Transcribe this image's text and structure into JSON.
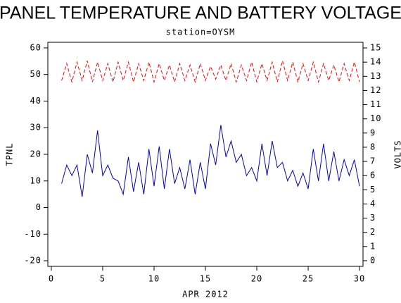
{
  "chart_data": {
    "type": "line",
    "title": "PANEL TEMPERATURE AND BATTERY VOLTAGE",
    "subtitle": "station=OYSM",
    "xlabel": "APR 2012",
    "ylabel": "TPNL",
    "y2label": "VOLTS",
    "x": [
      1,
      1.5,
      2,
      2.5,
      3,
      3.5,
      4,
      4.5,
      5,
      5.5,
      6,
      6.5,
      7,
      7.5,
      8,
      8.5,
      9,
      9.5,
      10,
      10.5,
      11,
      11.5,
      12,
      12.5,
      13,
      13.5,
      14,
      14.5,
      15,
      15.5,
      16,
      16.5,
      17,
      17.5,
      18,
      18.5,
      19,
      19.5,
      20,
      20.5,
      21,
      21.5,
      22,
      22.5,
      23,
      23.5,
      24,
      24.5,
      25,
      25.5,
      26,
      26.5,
      27,
      27.5,
      28,
      28.5,
      29,
      29.5,
      30
    ],
    "series": [
      {
        "color": "#0000cc",
        "dash": false,
        "axis": "y",
        "values": [
          9,
          16,
          12,
          16,
          4,
          20,
          13,
          29,
          12,
          16,
          11,
          10,
          5,
          19,
          6,
          17,
          5,
          22,
          8,
          23,
          7,
          22,
          9,
          15,
          7,
          18,
          5,
          17,
          7,
          24,
          16,
          31,
          19,
          25,
          17,
          20,
          12,
          15,
          10,
          24,
          12,
          25,
          15,
          17,
          10,
          14,
          8,
          13,
          7,
          22,
          10,
          24,
          10,
          21,
          10,
          18,
          12,
          18,
          8
        ]
      },
      {
        "color": "#ff0000",
        "dash": true,
        "axis": "y2",
        "values": [
          12.7,
          13.9,
          12.6,
          14.0,
          12.7,
          14.1,
          12.6,
          14.0,
          12.7,
          13.9,
          12.6,
          14.0,
          12.7,
          14.0,
          12.6,
          13.9,
          12.7,
          14.0,
          12.6,
          13.9,
          12.7,
          13.8,
          12.6,
          13.9,
          12.7,
          13.8,
          12.6,
          13.9,
          12.7,
          13.7,
          12.8,
          13.8,
          12.7,
          13.9,
          12.6,
          13.8,
          12.7,
          14.0,
          12.6,
          13.9,
          12.7,
          14.0,
          12.6,
          14.1,
          12.7,
          14.0,
          12.6,
          13.9,
          12.7,
          14.0,
          12.6,
          13.9,
          12.7,
          13.8,
          12.6,
          13.9,
          12.7,
          14.0,
          12.6
        ]
      }
    ],
    "xlim": [
      -0.34,
      30.34
    ],
    "xticks": [
      0,
      5,
      10,
      15,
      20,
      25,
      30
    ],
    "ylim": [
      -22.1,
      62.1
    ],
    "yticks": [
      -20,
      -10,
      0,
      10,
      20,
      30,
      40,
      50,
      60
    ],
    "y2lim": [
      -0.4,
      15.4
    ],
    "y2ticks": [
      0,
      1,
      2,
      3,
      4,
      5,
      6,
      7,
      8,
      9,
      10,
      11,
      12,
      13,
      14,
      15
    ]
  }
}
